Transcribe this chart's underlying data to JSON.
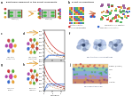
{
  "bg_color": "#ffffff",
  "panel_a_bg": "#f0eeee",
  "panel_b_bg": "#f8f8ff",
  "panel_c_bg": "#f0f0e8",
  "panel_d_bg": "#f0f0e8",
  "panel_e_bg": "#ffffff",
  "panel_f_bg": "#ddeeff",
  "panel_g_bg": "#eef0e8",
  "panel_h_bg": "#eef0e8",
  "panel_i_bg": "#ffffff",
  "panel_j_bg": "#ffffff",
  "title_a": "a  Traditional viewpoint in the effect of graphite",
  "title_b": "b  Effect of Conditions",
  "arrow_color": "#e8a030",
  "arrow_color2": "#f08040",
  "grid_colors_ordered": [
    "#cc3333",
    "#3366cc",
    "#33aa44",
    "#ddaa22",
    "#cc3333",
    "#3366cc"
  ],
  "grid_colors_disordered": [
    "#cc3333",
    "#3366cc",
    "#33aa44",
    "#ddaa22",
    "#cc8833",
    "#884488"
  ],
  "battery_gray": "#888888",
  "battery_red": "#cc5533",
  "battery_green": "#55aa55",
  "battery_dark": "#555555",
  "battery_light": "#cccccc",
  "battery_yellow": "#ddcc44",
  "mol_colors": [
    "#e8a030",
    "#55aa33",
    "#cc4444",
    "#aa44aa",
    "#3366cc",
    "#e8a030"
  ],
  "mol_colors2": [
    "#e8a030",
    "#55aa33",
    "#cc4444",
    "#aa44aa",
    "#3366cc",
    "#e8a030",
    "#55aa33",
    "#cc4444"
  ],
  "center_color1": "#cc44aa",
  "center_color2": "#dd6633",
  "sei_colors": [
    "#ee6644",
    "#3366aa",
    "#66aa44",
    "#ddcc33",
    "#884488"
  ],
  "layer_colors": [
    "#ddcc88",
    "#88bbdd",
    "#aaddcc",
    "#cc8844",
    "#eebb88",
    "#ccaacc"
  ],
  "legend_dot_color1": "#cc3333",
  "legend_dot_color2": "#3366cc",
  "legend_text1": "Li Forming aggregates",
  "legend_text2": "Coordination in Li Salvation"
}
